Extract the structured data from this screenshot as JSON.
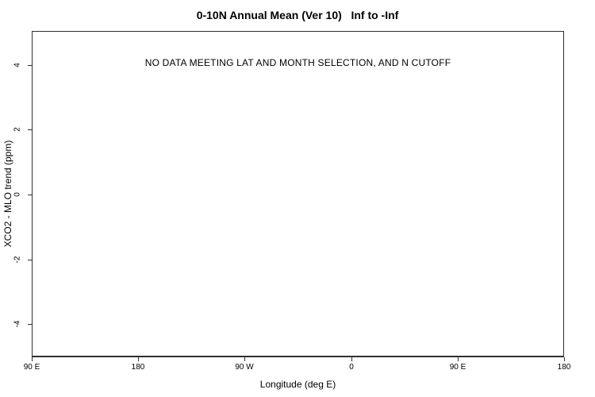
{
  "chart_data": {
    "type": "scatter",
    "title": "0-10N Annual Mean (Ver 10)   Inf to -Inf",
    "xlabel": "Longitude (deg E)",
    "ylabel": "XCO2 - MLO trend (ppm)",
    "annotation": "NO DATA MEETING LAT AND MONTH SELECTION, AND N CUTOFF",
    "x_tick_labels": [
      "90 E",
      "180",
      "90 W",
      "0",
      "90 E",
      "180"
    ],
    "y_tick_labels": [
      "4",
      "2",
      "0",
      "-2",
      "-4"
    ],
    "y_tick_values": [
      4,
      2,
      0,
      -2,
      -4
    ],
    "ylim": [
      -5,
      5
    ],
    "series": [],
    "grid": false,
    "legend": null
  },
  "colors": {
    "background": "#ffffff",
    "axis": "#303030",
    "text": "#000000"
  }
}
